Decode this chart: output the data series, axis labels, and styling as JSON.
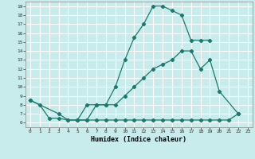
{
  "xlabel": "Humidex (Indice chaleur)",
  "bg_color": "#c8ecec",
  "grid_color": "#ffffff",
  "line_color": "#1a7a6e",
  "xlim": [
    -0.5,
    23.5
  ],
  "ylim": [
    5.5,
    19.5
  ],
  "xticks": [
    0,
    1,
    2,
    3,
    4,
    5,
    6,
    7,
    8,
    9,
    10,
    11,
    12,
    13,
    14,
    15,
    16,
    17,
    18,
    19,
    20,
    21,
    22,
    23
  ],
  "yticks": [
    6,
    7,
    8,
    9,
    10,
    11,
    12,
    13,
    14,
    15,
    16,
    17,
    18,
    19
  ],
  "line1_x": [
    0,
    1,
    2,
    3,
    4,
    5,
    6,
    7,
    8,
    9,
    10,
    11,
    12,
    13,
    14,
    15,
    16,
    17,
    18,
    19
  ],
  "line1_y": [
    8.5,
    8,
    6.5,
    6.5,
    6.3,
    6.3,
    8,
    8,
    8,
    10,
    13,
    15.5,
    17,
    19,
    19,
    18.5,
    18,
    15.2,
    15.2,
    15.2
  ],
  "line2_x": [
    0,
    3,
    4,
    5,
    6,
    7,
    8,
    9,
    10,
    11,
    12,
    13,
    14,
    15,
    16,
    17,
    18,
    19,
    20,
    22
  ],
  "line2_y": [
    8.5,
    7,
    6.3,
    6.3,
    6.3,
    8,
    8,
    8,
    9,
    10,
    11,
    12,
    12.5,
    13,
    14,
    14,
    12,
    13,
    9.5,
    7
  ],
  "line3_x": [
    5,
    6,
    7,
    8,
    9,
    10,
    11,
    12,
    13,
    14,
    15,
    16,
    17,
    18,
    19,
    20,
    21,
    22
  ],
  "line3_y": [
    6.3,
    6.3,
    6.3,
    6.3,
    6.3,
    6.3,
    6.3,
    6.3,
    6.3,
    6.3,
    6.3,
    6.3,
    6.3,
    6.3,
    6.3,
    6.3,
    6.3,
    7.0
  ]
}
